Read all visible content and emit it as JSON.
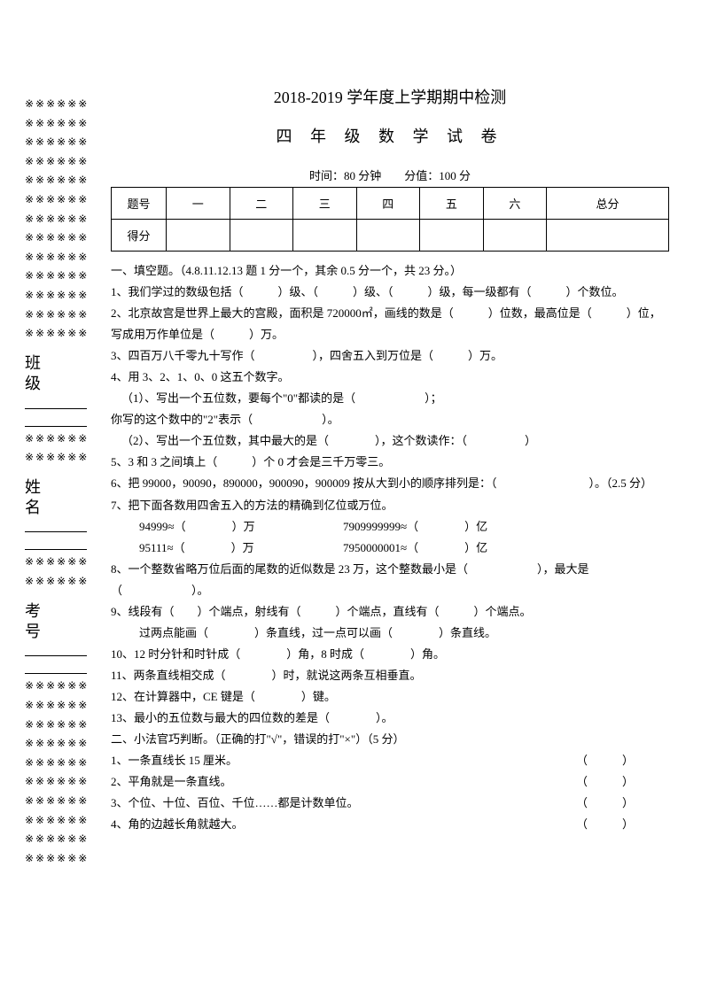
{
  "margin": {
    "decor": "※※※※※※",
    "label1": "班 级",
    "label2": "姓 名",
    "label3": "考 号"
  },
  "header": {
    "title1": "2018-2019 学年度上学期期中检测",
    "title2": "四 年 级 数 学 试 卷",
    "time_score": "时间：80 分钟　　分值：100 分"
  },
  "table": {
    "h_row": "题号",
    "c1": "一",
    "c2": "二",
    "c3": "三",
    "c4": "四",
    "c5": "五",
    "c6": "六",
    "c7": "总分",
    "s_row": "得分"
  },
  "sec1": {
    "title": "一、填空题。（4.8.11.12.13 题 1 分一个，其余 0.5 分一个，共 23 分。）",
    "q1": "1、我们学过的数级包括（　　　）级、（　　　）级、（　　　）级，每一级都有（　　　）个数位。",
    "q2": "2、北京故宫是世界上最大的宫殿，面积是 720000㎡，画线的数是（　　　）位数，最高位是（　　　）位，写成用万作单位是（　　　）万。",
    "q3": "3、四百万八千零九十写作（　　　　　），四舍五入到万位是（　　　）万。",
    "q4": "4、用 3、2、1、0、0 这五个数字。",
    "q4_1": "（1）、写出一个五位数，要每个\"0\"都读的是（　　　　　　）；",
    "q4_1b": "你写的这个数中的\"2\"表示（　　　　　　）。",
    "q4_2": "（2）、写出一个五位数，其中最大的是（　　　　），这个数读作：（　　　　　）",
    "q5": "5、3 和 3 之间填上（　　　）个 0 才会是三千万零三。",
    "q6": "6、把 99000，90090，890000，900090，900009 按从大到小的顺序排列是：（　　　　　　　　）。（2.5 分）",
    "q7": "7、把下面各数用四舍五入的方法的精确到亿位或万位。",
    "q7a1": "94999≈（　　　　）万",
    "q7a2": "7909999999≈（　　　　）亿",
    "q7b1": "95111≈（　　　　）万",
    "q7b2": "7950000001≈（　　　　）亿",
    "q8": "8、一个整数省略万位后面的尾数的近似数是 23 万，这个整数最小是（　　　　　　），最大是（　　　　　　）。",
    "q9": "9、线段有（　　）个端点，射线有（　　　）个端点，直线有（　　　）个端点。",
    "q9b": "过两点能画（　　　　）条直线，过一点可以画（　　　　）条直线。",
    "q10": "10、12 时分针和时针成（　　　　）角，8 时成（　　　　）角。",
    "q11": "11、两条直线相交成（　　　　）时，就说这两条互相垂直。",
    "q12": "12、在计算器中，CE 键是（　　　　）键。",
    "q13": "13、最小的五位数与最大的四位数的差是（　　　　）。"
  },
  "sec2": {
    "title": "二、小法官巧判断。（正确的打\"√\"，错误的打\"×\"）（5 分）",
    "q1": "1、一条直线长 15 厘米。",
    "q2": "2、平角就是一条直线。",
    "q3": "3、个位、十位、百位、千位……都是计数单位。",
    "q4": "4、角的边越长角就越大。",
    "bracket": "（　　　）"
  }
}
